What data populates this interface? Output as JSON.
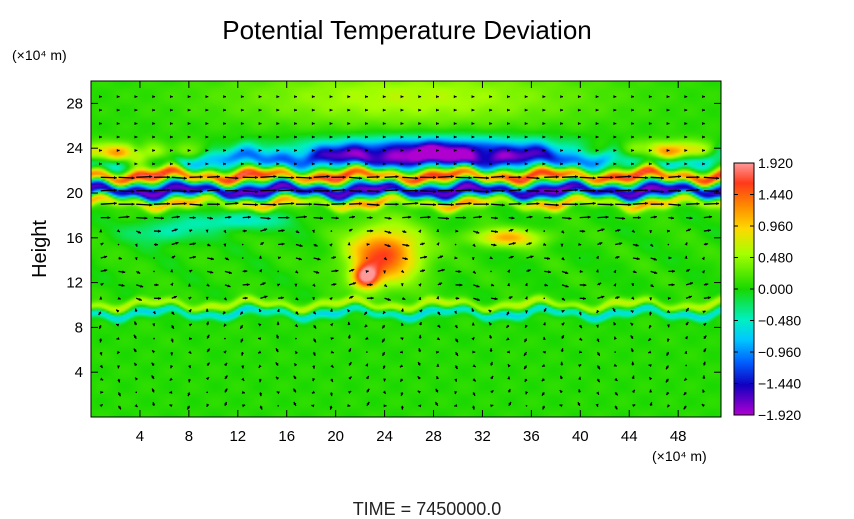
{
  "chart_data": {
    "type": "heatmap",
    "title": "Potential Temperature Deviation",
    "xlabel": "",
    "ylabel": "Height",
    "x_unit": "(×10⁴ m)",
    "y_unit": "(×10⁴ m)",
    "xlim": [
      0,
      51.5
    ],
    "ylim": [
      0,
      30
    ],
    "x_ticks": [
      4,
      8,
      12,
      16,
      20,
      24,
      28,
      32,
      36,
      40,
      44,
      48
    ],
    "y_ticks": [
      4,
      8,
      12,
      16,
      20,
      24,
      28
    ],
    "colorbar": {
      "ticks": [
        "1.920",
        "1.440",
        "0.960",
        "0.480",
        "0.000",
        "−0.480",
        "−0.960",
        "−1.440",
        "−1.920"
      ],
      "values": [
        1.92,
        1.44,
        0.96,
        0.48,
        0.0,
        -0.48,
        -0.96,
        -1.44,
        -1.92
      ],
      "range": [
        -1.92,
        1.92
      ]
    },
    "features": [
      {
        "kind": "band",
        "y": 20.2,
        "half_width": 0.8,
        "value": -1.8
      },
      {
        "kind": "band",
        "y": 21.5,
        "half_width": 0.6,
        "value": 1.7
      },
      {
        "kind": "band",
        "y": 19.2,
        "half_width": 0.5,
        "value": 1.2
      },
      {
        "kind": "band",
        "y": 23.0,
        "half_width": 0.9,
        "value": -1.0
      },
      {
        "kind": "band",
        "y": 10.0,
        "half_width": 0.4,
        "value": 0.6
      },
      {
        "kind": "band",
        "y": 9.3,
        "half_width": 0.4,
        "value": -0.7
      },
      {
        "kind": "blob",
        "x": 3,
        "y": 23.4,
        "rx": 5,
        "ry": 0.9,
        "value": 1.6
      },
      {
        "kind": "blob",
        "x": 47,
        "y": 23.6,
        "rx": 5,
        "ry": 0.9,
        "value": 1.4
      },
      {
        "kind": "blob",
        "x": 28,
        "y": 23.8,
        "rx": 10,
        "ry": 1.2,
        "value": -1.6
      },
      {
        "kind": "blob",
        "x": 24,
        "y": 14.5,
        "rx": 3,
        "ry": 2.5,
        "value": 1.5
      },
      {
        "kind": "blob",
        "x": 22.5,
        "y": 12.5,
        "rx": 1,
        "ry": 1,
        "value": 1.7
      },
      {
        "kind": "blob",
        "x": 34,
        "y": 16.0,
        "rx": 3,
        "ry": 0.8,
        "value": 1.0
      },
      {
        "kind": "blob",
        "x": 12,
        "y": 17.5,
        "rx": 4,
        "ry": 0.8,
        "value": -0.6
      },
      {
        "kind": "blob",
        "x": 6,
        "y": 16.5,
        "rx": 3,
        "ry": 1.0,
        "value": -0.5
      },
      {
        "kind": "blob",
        "x": 26,
        "y": 28.5,
        "rx": 14,
        "ry": 2.5,
        "value": 0.55
      }
    ]
  },
  "footer": {
    "time_label": "TIME = 7450000.0"
  }
}
